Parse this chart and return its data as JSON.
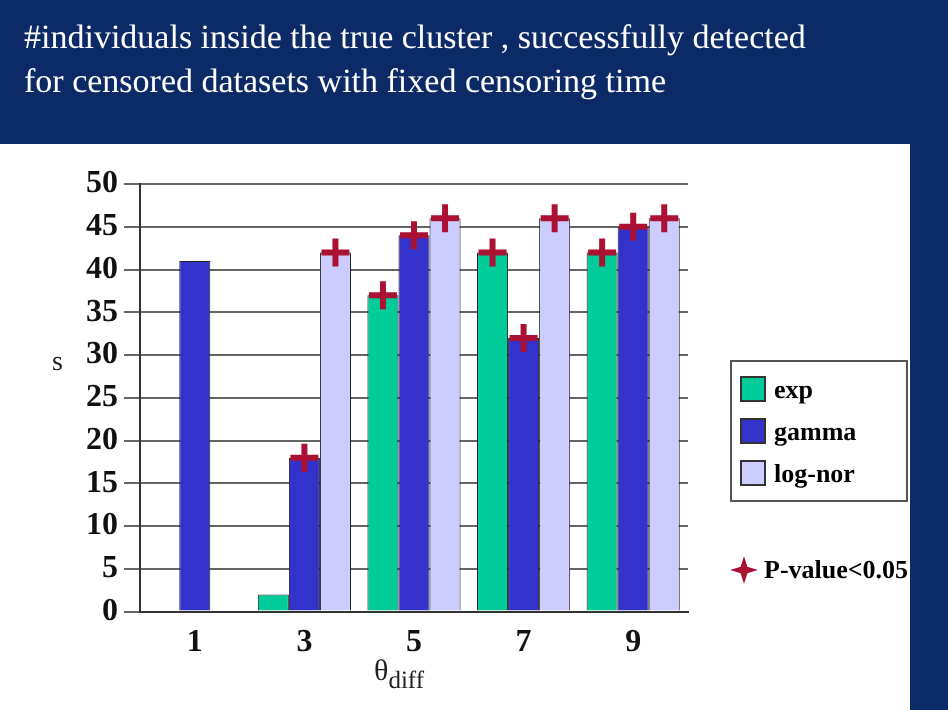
{
  "chart_data": {
    "type": "bar",
    "title": [
      "#individuals inside the true cluster , successfully detected",
      "for censored datasets with fixed censoring time"
    ],
    "xlabel": "θ$_{diff}$",
    "ylabel": "s",
    "categories": [
      "1",
      "3",
      "5",
      "7",
      "9"
    ],
    "series": [
      {
        "name": "exp",
        "color": "#00cc99",
        "values": [
          0,
          2,
          37,
          42,
          42
        ]
      },
      {
        "name": "gamma",
        "color": "#3333cc",
        "values": [
          41,
          18,
          44,
          32,
          45
        ]
      },
      {
        "name": "log-nor",
        "color": "#ccccff",
        "values": [
          0,
          42,
          46,
          46,
          46
        ]
      },
      {
        "name": "P-value<0.05",
        "type": "scatter",
        "marker": "cross",
        "color": "#aa1133",
        "x": [
          "3",
          "3",
          "5",
          "5",
          "5",
          "7",
          "7",
          "7",
          "9",
          "9",
          "9"
        ],
        "values": [
          18,
          42,
          37,
          44,
          46,
          42,
          32,
          46,
          42,
          45,
          46
        ]
      }
    ],
    "ylim": [
      0,
      50
    ],
    "yticks": [
      0,
      5,
      10,
      15,
      20,
      25,
      30,
      35,
      40,
      45,
      50
    ],
    "grid": "y",
    "legend": "right"
  }
}
